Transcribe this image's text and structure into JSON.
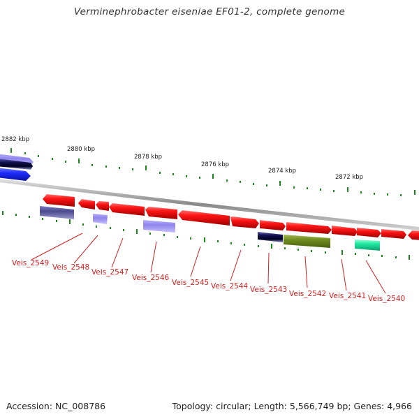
{
  "title": "Verminephrobacter eiseniae EF01-2, complete genome",
  "accession_text": "Accession: NC_008786",
  "summary_text": "Topology: circular; Length: 5,566,749 bp; Genes: 4,966",
  "scale_labels": [
    "2882 kbp",
    "2880 kbp",
    "2878 kbp",
    "2876 kbp",
    "2874 kbp",
    "2872 kbp"
  ],
  "gene_labels": [
    "Veis_2549",
    "Veis_2548",
    "Veis_2547",
    "Veis_2546",
    "Veis_2545",
    "Veis_2544",
    "Veis_2543",
    "Veis_2542",
    "Veis_2541",
    "Veis_2540"
  ],
  "colors": {
    "cds_red": "#ff1414",
    "dark_blue": "#101050",
    "blue": "#1e2cff",
    "slate": "#4b4a8e",
    "lavender": "#8f84ea",
    "olive": "#6e8c1e",
    "teal": "#1ee8a0",
    "backbone": "#9a9a9a",
    "tick": "#1a8a1a",
    "label": "#d42020"
  }
}
